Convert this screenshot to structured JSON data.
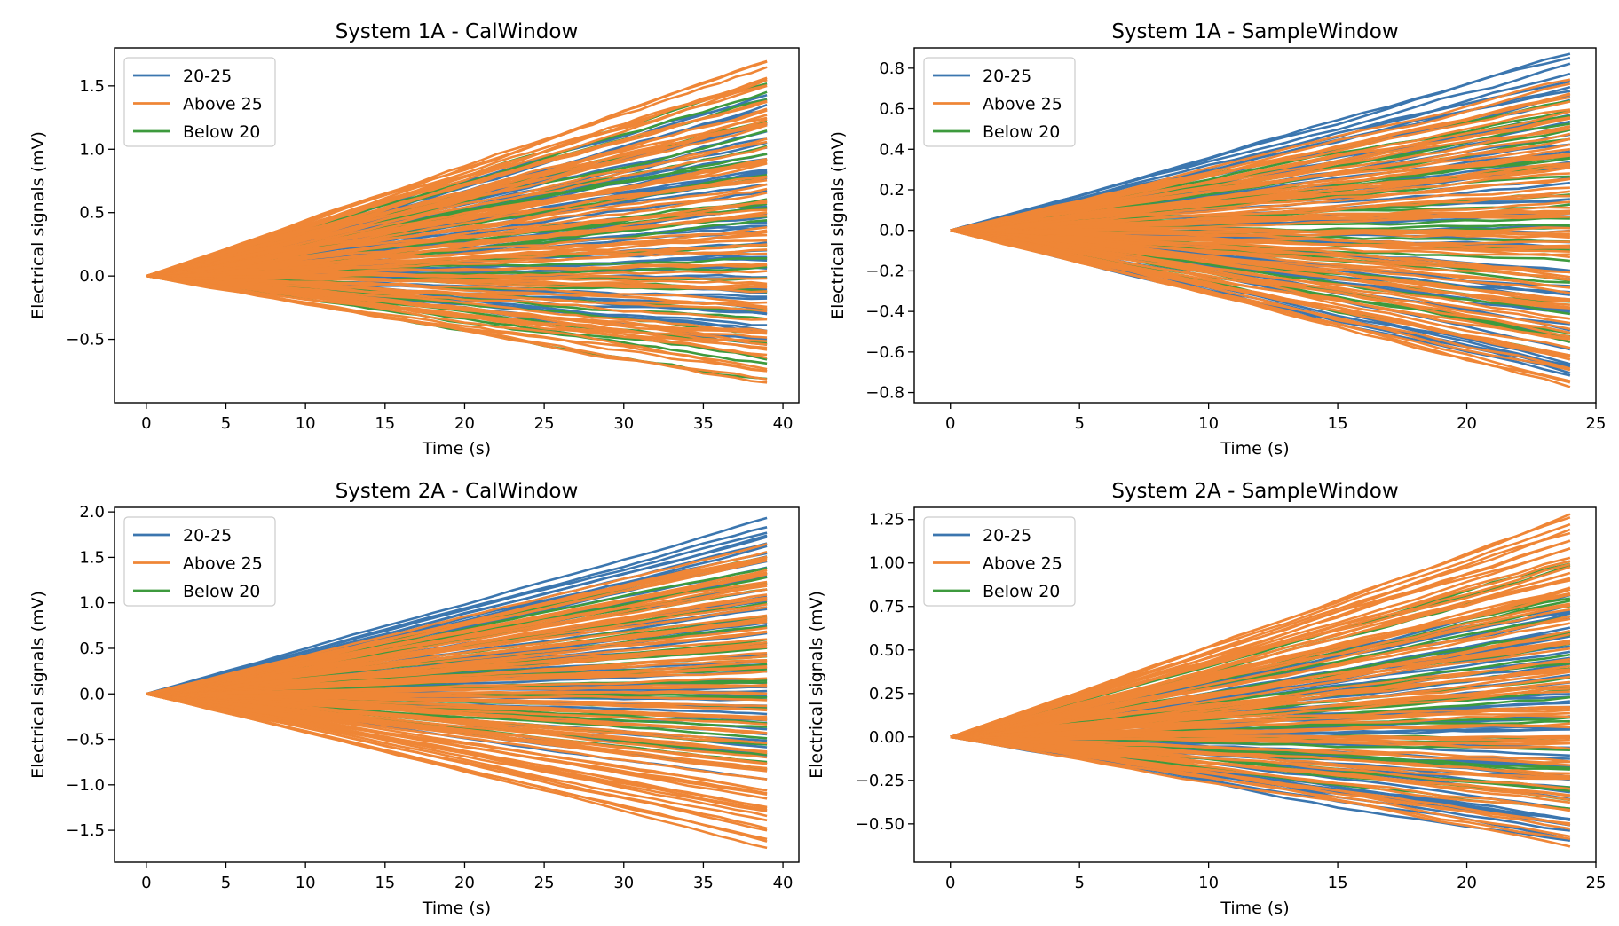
{
  "colors": {
    "20-25": "#3b76af",
    "Above 25": "#ef8636",
    "Below 20": "#3d9a3d"
  },
  "chart_data": [
    {
      "type": "line",
      "title": "System 1A - CalWindow",
      "xlabel": "Time (s)",
      "ylabel": "Electrical signals (mV)",
      "xlim": [
        -2,
        41
      ],
      "ylim": [
        -1.0,
        1.8
      ],
      "xticks": [
        0,
        5,
        10,
        15,
        20,
        25,
        30,
        35,
        40
      ],
      "yticks": [
        -0.5,
        0.0,
        0.5,
        1.0,
        1.5
      ],
      "ytick_labels": [
        "−0.5",
        "0.0",
        "0.5",
        "1.0",
        "1.5"
      ],
      "x_end": 39,
      "steps": 39,
      "legend": {
        "position": "top-left",
        "entries": [
          "20-25",
          "Above 25",
          "Below 20"
        ]
      },
      "series": [
        {
          "name": "20-25",
          "n": 55,
          "end_min": -0.55,
          "end_max": 1.4,
          "noise": 0.012
        },
        {
          "name": "Below 20",
          "n": 30,
          "end_min": -0.82,
          "end_max": 1.52,
          "noise": 0.012
        },
        {
          "name": "Above 25",
          "n": 80,
          "end_min": -0.86,
          "end_max": 1.68,
          "noise": 0.012
        }
      ]
    },
    {
      "type": "line",
      "title": "System 1A - SampleWindow",
      "xlabel": "Time (s)",
      "ylabel": "Electrical signals (mV)",
      "xlim": [
        -1.4,
        25
      ],
      "ylim": [
        -0.85,
        0.9
      ],
      "xticks": [
        0,
        5,
        10,
        15,
        20,
        25
      ],
      "yticks": [
        -0.8,
        -0.6,
        -0.4,
        -0.2,
        0.0,
        0.2,
        0.4,
        0.6,
        0.8
      ],
      "ytick_labels": [
        "−0.8",
        "−0.6",
        "−0.4",
        "−0.2",
        "0.0",
        "0.2",
        "0.4",
        "0.6",
        "0.8"
      ],
      "x_end": 24,
      "steps": 24,
      "legend": {
        "position": "top-left",
        "entries": [
          "20-25",
          "Above 25",
          "Below 20"
        ]
      },
      "series": [
        {
          "name": "20-25",
          "n": 55,
          "end_min": -0.74,
          "end_max": 0.84,
          "noise": 0.01
        },
        {
          "name": "Below 20",
          "n": 30,
          "end_min": -0.6,
          "end_max": 0.66,
          "noise": 0.01
        },
        {
          "name": "Above 25",
          "n": 80,
          "end_min": -0.76,
          "end_max": 0.71,
          "noise": 0.01
        }
      ]
    },
    {
      "type": "line",
      "title": "System 2A - CalWindow",
      "xlabel": "Time (s)",
      "ylabel": "Electrical signals (mV)",
      "xlim": [
        -2,
        41
      ],
      "ylim": [
        -1.85,
        2.05
      ],
      "xticks": [
        0,
        5,
        10,
        15,
        20,
        25,
        30,
        35,
        40
      ],
      "yticks": [
        -1.5,
        -1.0,
        -0.5,
        0.0,
        0.5,
        1.0,
        1.5,
        2.0
      ],
      "ytick_labels": [
        "−1.5",
        "−1.0",
        "−0.5",
        "0.0",
        "0.5",
        "1.0",
        "1.5",
        "2.0"
      ],
      "x_end": 39,
      "steps": 39,
      "legend": {
        "position": "top-left",
        "entries": [
          "20-25",
          "Above 25",
          "Below 20"
        ]
      },
      "series": [
        {
          "name": "20-25",
          "n": 55,
          "end_min": -0.9,
          "end_max": 1.9,
          "noise": 0.008
        },
        {
          "name": "Below 20",
          "n": 30,
          "end_min": -0.85,
          "end_max": 1.5,
          "noise": 0.008
        },
        {
          "name": "Above 25",
          "n": 80,
          "end_min": -1.66,
          "end_max": 1.62,
          "noise": 0.008
        }
      ]
    },
    {
      "type": "line",
      "title": "System 2A - SampleWindow",
      "xlabel": "Time (s)",
      "ylabel": "Electrical signals (mV)",
      "xlim": [
        -1.4,
        25
      ],
      "ylim": [
        -0.72,
        1.32
      ],
      "xticks": [
        0,
        5,
        10,
        15,
        20,
        25
      ],
      "yticks": [
        -0.5,
        -0.25,
        0.0,
        0.25,
        0.5,
        0.75,
        1.0,
        1.25
      ],
      "ytick_labels": [
        "−0.50",
        "−0.25",
        "0.00",
        "0.25",
        "0.50",
        "0.75",
        "1.00",
        "1.25"
      ],
      "x_end": 24,
      "steps": 24,
      "legend": {
        "position": "top-left",
        "entries": [
          "20-25",
          "Above 25",
          "Below 20"
        ]
      },
      "series": [
        {
          "name": "20-25",
          "n": 55,
          "end_min": -0.62,
          "end_max": 0.78,
          "noise": 0.01
        },
        {
          "name": "Below 20",
          "n": 30,
          "end_min": -0.45,
          "end_max": 1.01,
          "noise": 0.01
        },
        {
          "name": "Above 25",
          "n": 80,
          "end_min": -0.6,
          "end_max": 1.26,
          "noise": 0.01
        }
      ]
    }
  ]
}
